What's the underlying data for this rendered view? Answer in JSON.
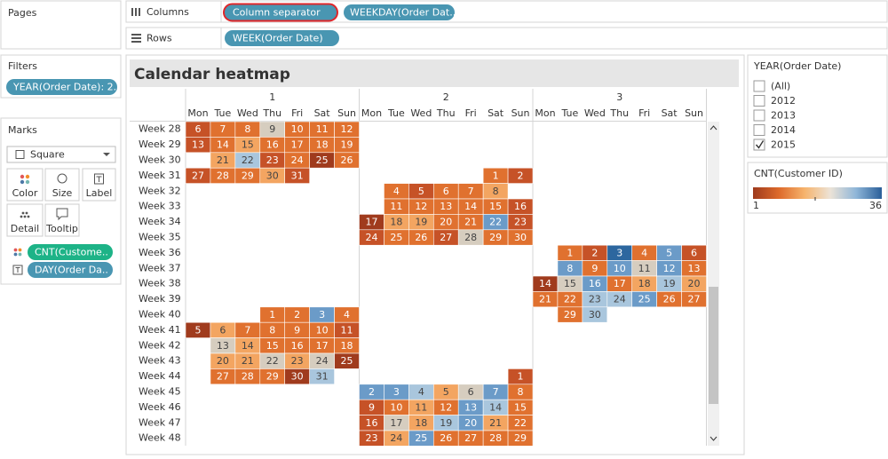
{
  "pages": {
    "title": "Pages"
  },
  "shelves": {
    "columns": {
      "label": "Columns",
      "pills": [
        "Column separator",
        "WEEKDAY(Order Dat.."
      ]
    },
    "rows": {
      "label": "Rows",
      "pills": [
        "WEEK(Order Date)"
      ]
    }
  },
  "filters": {
    "title": "Filters",
    "pills": [
      "YEAR(Order Date): 2.."
    ]
  },
  "marks": {
    "title": "Marks",
    "mark_type": "Square",
    "buttons": [
      "Color",
      "Size",
      "Label",
      "Detail",
      "Tooltip"
    ],
    "pills": [
      "CNT(Custome..",
      "DAY(Order Da.."
    ]
  },
  "heatmap": {
    "title": "Calendar heatmap",
    "groups": [
      "1",
      "2",
      "3"
    ],
    "weekdays": [
      "Mon",
      "Tue",
      "Wed",
      "Thu",
      "Fri",
      "Sat",
      "Sun"
    ],
    "rows": [
      {
        "label": "Week 28",
        "days": [
          [
            6,
            7,
            8,
            9,
            10,
            11,
            12
          ],
          null,
          null
        ],
        "colors": [
          [
            "#c65227",
            "#e0712f",
            "#e0712f",
            "#d6cdbf",
            "#e0712f",
            "#e0712f",
            "#e0712f"
          ],
          null,
          null
        ]
      },
      {
        "label": "Week 29",
        "days": [
          [
            13,
            14,
            15,
            16,
            17,
            18,
            19
          ],
          null,
          null
        ],
        "colors": [
          [
            "#c65227",
            "#e0712f",
            "#f3a561",
            "#e0712f",
            "#e0712f",
            "#e0712f",
            "#e0712f"
          ],
          null,
          null
        ]
      },
      {
        "label": "Week 30",
        "days": [
          [
            null,
            21,
            22,
            23,
            24,
            25,
            26
          ],
          null,
          null
        ],
        "colors": [
          [
            null,
            "#f3a561",
            "#a9c6dd",
            "#c65227",
            "#e0712f",
            "#a03b1d",
            "#e0712f"
          ],
          null,
          null
        ]
      },
      {
        "label": "Week 31",
        "days": [
          [
            27,
            28,
            29,
            30,
            31,
            null,
            null
          ],
          [
            null,
            null,
            null,
            null,
            null,
            1,
            2
          ],
          null
        ],
        "colors": [
          [
            "#c65227",
            "#e0712f",
            "#e0712f",
            "#f3a561",
            "#c65227",
            null,
            null
          ],
          [
            null,
            null,
            null,
            null,
            null,
            "#e0712f",
            "#c65227"
          ],
          null
        ]
      },
      {
        "label": "Week 32",
        "days": [
          null,
          [
            null,
            4,
            5,
            6,
            7,
            8,
            null
          ],
          null
        ],
        "colors": [
          null,
          [
            null,
            "#e0712f",
            "#c65227",
            "#e0712f",
            "#e0712f",
            "#f3a561",
            null
          ],
          null
        ]
      },
      {
        "label": "Week 33",
        "days": [
          null,
          [
            null,
            11,
            12,
            13,
            14,
            15,
            16
          ],
          null
        ],
        "colors": [
          null,
          [
            null,
            "#e0712f",
            "#e0712f",
            "#e0712f",
            "#e0712f",
            "#e0712f",
            "#c65227"
          ],
          null
        ]
      },
      {
        "label": "Week 34",
        "days": [
          null,
          [
            17,
            18,
            19,
            20,
            21,
            22,
            23
          ],
          null
        ],
        "colors": [
          null,
          [
            "#a03b1d",
            "#f3a561",
            "#f3a561",
            "#e0712f",
            "#e0712f",
            "#6b9bc8",
            "#c65227"
          ],
          null
        ]
      },
      {
        "label": "Week 35",
        "days": [
          null,
          [
            24,
            25,
            26,
            27,
            28,
            29,
            30
          ],
          null
        ],
        "colors": [
          null,
          [
            "#c65227",
            "#e0712f",
            "#e0712f",
            "#c65227",
            "#d6cdbf",
            "#e0712f",
            "#e0712f"
          ],
          null
        ]
      },
      {
        "label": "Week 36",
        "days": [
          null,
          null,
          [
            null,
            1,
            2,
            3,
            4,
            5,
            6
          ]
        ],
        "colors": [
          null,
          null,
          [
            null,
            "#e0712f",
            "#c65227",
            "#2d679f",
            "#e0712f",
            "#6b9bc8",
            "#c65227"
          ]
        ]
      },
      {
        "label": "Week 37",
        "days": [
          null,
          null,
          [
            null,
            8,
            9,
            10,
            11,
            12,
            13
          ]
        ],
        "colors": [
          null,
          null,
          [
            null,
            "#6b9bc8",
            "#e0712f",
            "#6b9bc8",
            "#d6cdbf",
            "#6b9bc8",
            "#e0712f"
          ]
        ]
      },
      {
        "label": "Week 38",
        "days": [
          null,
          null,
          [
            14,
            15,
            16,
            17,
            18,
            19,
            20
          ]
        ],
        "colors": [
          null,
          null,
          [
            "#a03b1d",
            "#d6cdbf",
            "#6b9bc8",
            "#e0712f",
            "#f3a561",
            "#a9c6dd",
            "#f3a561"
          ]
        ]
      },
      {
        "label": "Week 39",
        "days": [
          null,
          null,
          [
            21,
            22,
            23,
            24,
            25,
            26,
            27
          ]
        ],
        "colors": [
          null,
          null,
          [
            "#e0712f",
            "#e0712f",
            "#a9c6dd",
            "#a9c6dd",
            "#6b9bc8",
            "#e0712f",
            "#e0712f"
          ]
        ]
      },
      {
        "label": "Week 40",
        "days": [
          [
            null,
            null,
            null,
            1,
            2,
            3,
            4
          ],
          null,
          [
            null,
            29,
            30,
            null,
            null,
            null,
            null
          ]
        ],
        "colors": [
          [
            null,
            null,
            null,
            "#e0712f",
            "#e0712f",
            "#6b9bc8",
            "#e0712f"
          ],
          null,
          [
            null,
            "#e0712f",
            "#a9c6dd",
            null,
            null,
            null,
            null
          ]
        ]
      },
      {
        "label": "Week 41",
        "days": [
          [
            5,
            6,
            7,
            8,
            9,
            10,
            11
          ],
          null,
          null
        ],
        "colors": [
          [
            "#a03b1d",
            "#f3a561",
            "#e0712f",
            "#e0712f",
            "#e0712f",
            "#e0712f",
            "#c65227"
          ],
          null,
          null
        ]
      },
      {
        "label": "Week 42",
        "days": [
          [
            null,
            13,
            14,
            15,
            16,
            17,
            18
          ],
          null,
          null
        ],
        "colors": [
          [
            null,
            "#d6cdbf",
            "#f3a561",
            "#e0712f",
            "#e0712f",
            "#e0712f",
            "#e0712f"
          ],
          null,
          null
        ]
      },
      {
        "label": "Week 43",
        "days": [
          [
            null,
            20,
            21,
            22,
            23,
            24,
            25
          ],
          null,
          null
        ],
        "colors": [
          [
            null,
            "#f3a561",
            "#f3a561",
            "#d6cdbf",
            "#f3a561",
            "#d6cdbf",
            "#a03b1d"
          ],
          null,
          null
        ]
      },
      {
        "label": "Week 44",
        "days": [
          [
            null,
            27,
            28,
            29,
            30,
            31,
            null
          ],
          [
            null,
            null,
            null,
            null,
            null,
            null,
            1
          ],
          null
        ],
        "colors": [
          [
            null,
            "#e0712f",
            "#e0712f",
            "#e0712f",
            "#a03b1d",
            "#a9c6dd",
            null
          ],
          [
            null,
            null,
            null,
            null,
            null,
            null,
            "#c65227"
          ],
          null
        ]
      },
      {
        "label": "Week 45",
        "days": [
          null,
          [
            2,
            3,
            4,
            5,
            6,
            7,
            8
          ],
          null
        ],
        "colors": [
          null,
          [
            "#6b9bc8",
            "#6b9bc8",
            "#a9c6dd",
            "#f3a561",
            "#d6cdbf",
            "#6b9bc8",
            "#e0712f"
          ],
          null
        ]
      },
      {
        "label": "Week 46",
        "days": [
          null,
          [
            9,
            10,
            11,
            12,
            13,
            14,
            15
          ],
          null
        ],
        "colors": [
          null,
          [
            "#c65227",
            "#e0712f",
            "#f3a561",
            "#e0712f",
            "#6b9bc8",
            "#a9c6dd",
            "#e0712f"
          ],
          null
        ]
      },
      {
        "label": "Week 47",
        "days": [
          null,
          [
            16,
            17,
            18,
            19,
            20,
            21,
            22
          ],
          null
        ],
        "colors": [
          null,
          [
            "#c65227",
            "#d6cdbf",
            "#f3a561",
            "#a9c6dd",
            "#6b9bc8",
            "#f3a561",
            "#e0712f"
          ],
          null
        ]
      },
      {
        "label": "Week 48",
        "days": [
          null,
          [
            23,
            24,
            25,
            26,
            27,
            28,
            29
          ],
          null
        ],
        "colors": [
          null,
          [
            "#c65227",
            "#f3a561",
            "#6b9bc8",
            "#e0712f",
            "#e0712f",
            "#e0712f",
            "#e0712f"
          ],
          null
        ]
      }
    ]
  },
  "year_filter": {
    "title": "YEAR(Order Date)",
    "options": [
      {
        "label": "(All)",
        "checked": false
      },
      {
        "label": "2012",
        "checked": false
      },
      {
        "label": "2013",
        "checked": false
      },
      {
        "label": "2014",
        "checked": false
      },
      {
        "label": "2015",
        "checked": true
      }
    ]
  },
  "legend": {
    "title": "CNT(Customer ID)",
    "min": 1,
    "max": 36,
    "colors": [
      "#9e3a1d",
      "#dd6a2b",
      "#f6b36c",
      "#ece3d7",
      "#8fb6d8",
      "#2a5f99"
    ]
  }
}
